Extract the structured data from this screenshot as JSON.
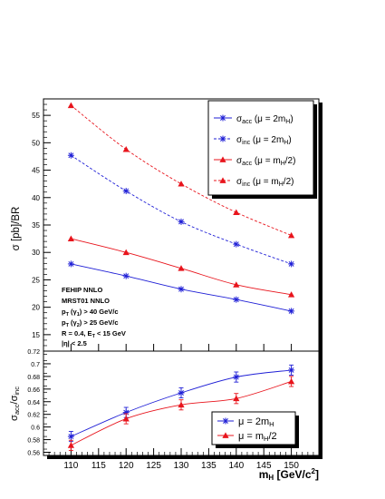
{
  "chart_data": [
    {
      "type": "line",
      "panel": "top",
      "ylabel": "σ [pb]/BR",
      "ylim": [
        12,
        58
      ],
      "yticks": [
        15,
        20,
        25,
        30,
        35,
        40,
        45,
        50,
        55
      ],
      "x": [
        110,
        120,
        130,
        140,
        150
      ],
      "xlim": [
        105,
        155
      ],
      "series": [
        {
          "name_main": "σ",
          "name_sub": "acc",
          "name_rest": " (μ = 2m",
          "name_rest_sub": "H",
          "name_close": ")",
          "color": "#1f1fd6",
          "marker": "star",
          "dashed": false,
          "values": [
            27.9,
            25.7,
            23.3,
            21.4,
            19.3
          ]
        },
        {
          "name_main": "σ",
          "name_sub": "inc",
          "name_rest": " (μ = 2m",
          "name_rest_sub": "H",
          "name_close": ")",
          "color": "#1f1fd6",
          "marker": "star",
          "dashed": true,
          "values": [
            47.7,
            41.2,
            35.6,
            31.5,
            27.9
          ]
        },
        {
          "name_main": "σ",
          "name_sub": "acc",
          "name_rest": " (μ = m",
          "name_rest_sub": "H",
          "name_close": "/2)",
          "color": "#e8141c",
          "marker": "triangle",
          "dashed": false,
          "values": [
            32.5,
            30.0,
            27.1,
            24.1,
            22.3
          ]
        },
        {
          "name_main": "σ",
          "name_sub": "inc",
          "name_rest": " (μ = m",
          "name_rest_sub": "H",
          "name_close": "/2)",
          "color": "#e8141c",
          "marker": "triangle",
          "dashed": true,
          "values": [
            56.8,
            48.8,
            42.5,
            37.3,
            33.1
          ]
        }
      ],
      "legend_position": "top-right",
      "annotation": {
        "line1": "FEHIP NNLO",
        "line2": "MRST01 NNLO",
        "line3_a": "p",
        "line3_sub1": "T",
        "line3_b": " (γ",
        "line3_sub2": "1",
        "line3_c": ") > 40 GeV/c",
        "line4_a": "p",
        "line4_sub1": "T",
        "line4_b": " (γ",
        "line4_sub2": "2",
        "line4_c": ") > 25 GeV/c",
        "line5_a": "R = 0.4, E",
        "line5_sub": "T",
        "line5_b": " < 15 GeV",
        "line6": "|η| < 2.5"
      }
    },
    {
      "type": "line",
      "panel": "bottom",
      "ylabel_main": "σ",
      "ylabel_sub1": "acc",
      "ylabel_mid": "/σ",
      "ylabel_sub2": "inc",
      "ylim": [
        0.555,
        0.72
      ],
      "yticks": [
        "0.72",
        "0.7",
        "0.68",
        "0.66",
        "0.64",
        "0.62",
        "0.6",
        "0.58",
        "0.56"
      ],
      "ytick_values": [
        0.72,
        0.7,
        0.68,
        0.66,
        0.64,
        0.62,
        0.6,
        0.58,
        0.56
      ],
      "x": [
        110,
        120,
        130,
        140,
        150
      ],
      "xlim": [
        105,
        155
      ],
      "xticks": [
        "110",
        "115",
        "120",
        "125",
        "130",
        "135",
        "140",
        "145",
        "150"
      ],
      "xtick_values": [
        110,
        115,
        120,
        125,
        130,
        135,
        140,
        145,
        150
      ],
      "xlabel_main": "m",
      "xlabel_sub": "H",
      "xlabel_rest": " [GeV/c",
      "xlabel_sup": "2",
      "xlabel_close": "]",
      "series": [
        {
          "name_a": "μ = 2m",
          "name_sub": "H",
          "name_b": "",
          "color": "#1f1fd6",
          "marker": "star",
          "values": [
            0.585,
            0.623,
            0.654,
            0.679,
            0.69
          ],
          "errors": [
            0.008,
            0.008,
            0.008,
            0.008,
            0.008
          ]
        },
        {
          "name_a": "μ = m",
          "name_sub": "H",
          "name_b": "/2",
          "color": "#e8141c",
          "marker": "triangle",
          "values": [
            0.571,
            0.613,
            0.635,
            0.645,
            0.672
          ],
          "errors": [
            0.008,
            0.008,
            0.008,
            0.008,
            0.008
          ]
        }
      ],
      "legend_position": "bottom-right"
    }
  ]
}
